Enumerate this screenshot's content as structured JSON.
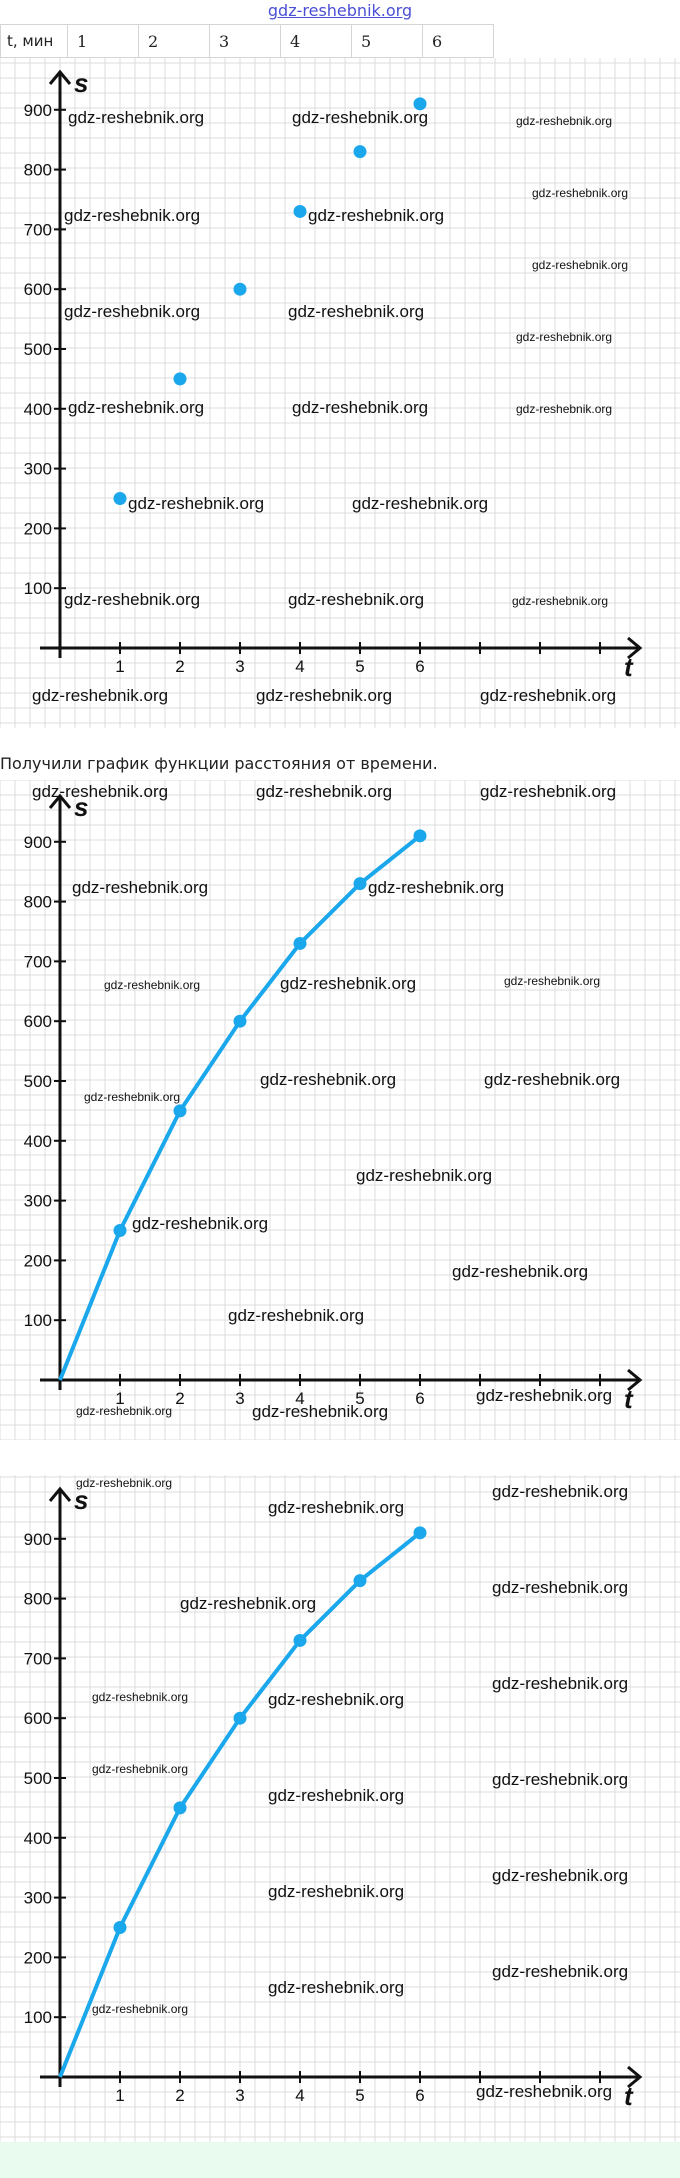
{
  "header": {
    "site_link": "gdz-reshebnik.org"
  },
  "table": {
    "label": "t, мин",
    "values": [
      "1",
      "2",
      "3",
      "4",
      "5",
      "6"
    ]
  },
  "caption": "Получили график функции расстояния от времени.",
  "watermark": "gdz-reshebnik.org",
  "colors": {
    "series": "#1aa7ec",
    "axis": "#111111",
    "grid": "#dcdcdc"
  },
  "chart_data": [
    {
      "type": "scatter",
      "xlabel": "t",
      "ylabel": "s",
      "x_ticks": [
        "1",
        "2",
        "3",
        "4",
        "5",
        "6"
      ],
      "y_ticks": [
        "100",
        "200",
        "300",
        "400",
        "500",
        "600",
        "700",
        "800",
        "900"
      ],
      "xlim": [
        0,
        9.5
      ],
      "ylim": [
        0,
        1000
      ],
      "grid": true,
      "series": [
        {
          "x": [
            1,
            2,
            3,
            4,
            5,
            6
          ],
          "y": [
            250,
            450,
            600,
            730,
            830,
            910
          ]
        }
      ]
    },
    {
      "type": "line",
      "xlabel": "t",
      "ylabel": "s",
      "x_ticks": [
        "1",
        "2",
        "3",
        "4",
        "5",
        "6"
      ],
      "y_ticks": [
        "100",
        "200",
        "300",
        "400",
        "500",
        "600",
        "700",
        "800",
        "900"
      ],
      "xlim": [
        0,
        9.5
      ],
      "ylim": [
        0,
        1000
      ],
      "grid": true,
      "series": [
        {
          "x": [
            0,
            1,
            2,
            3,
            4,
            5,
            6
          ],
          "y": [
            0,
            250,
            450,
            600,
            730,
            830,
            910
          ],
          "markers_from": 1
        }
      ]
    },
    {
      "type": "line",
      "xlabel": "t",
      "ylabel": "s",
      "x_ticks": [
        "1",
        "2",
        "3",
        "4",
        "5",
        "6"
      ],
      "y_ticks": [
        "100",
        "200",
        "300",
        "400",
        "500",
        "600",
        "700",
        "800",
        "900"
      ],
      "xlim": [
        0,
        9.5
      ],
      "ylim": [
        0,
        1000
      ],
      "grid": true,
      "series": [
        {
          "x": [
            0,
            1,
            2,
            3,
            4,
            5,
            6
          ],
          "y": [
            0,
            250,
            450,
            600,
            730,
            830,
            910
          ],
          "markers_from": 1
        }
      ]
    }
  ]
}
